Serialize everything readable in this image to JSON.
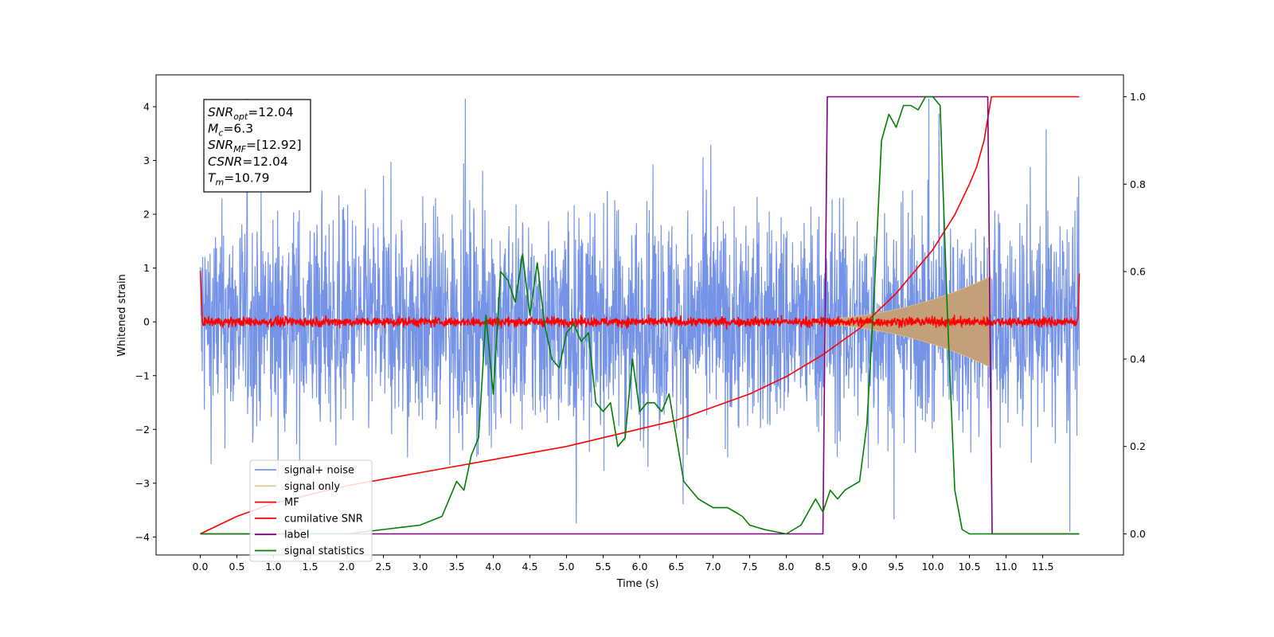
{
  "chart_data": {
    "type": "line",
    "xlabel": "Time (s)",
    "ylabel": "Whitened strain",
    "xlim": [
      -0.6,
      12.6
    ],
    "ylim": [
      -4.4,
      4.57
    ],
    "y2lim": [
      -0.05,
      1.05
    ],
    "grid": false,
    "legend_position": "lower-left",
    "x_ticks": [
      "0.0",
      "0.5",
      "1.0",
      "1.5",
      "2.0",
      "2.5",
      "3.0",
      "3.5",
      "4.0",
      "4.5",
      "5.0",
      "5.5",
      "6.0",
      "6.5",
      "7.0",
      "7.5",
      "8.0",
      "8.5",
      "9.0",
      "9.5",
      "10.0",
      "10.5",
      "11.0",
      "11.5"
    ],
    "y_ticks": [
      "4",
      "3",
      "2",
      "1",
      "0",
      "−1",
      "−2",
      "−3",
      "−4"
    ],
    "y2_ticks": [
      "1.0",
      "0.8",
      "0.6",
      "0.4",
      "0.2",
      "0.0"
    ],
    "info_box": {
      "lines": [
        {
          "symbol": "SNR",
          "sub": "opt",
          "value": "=12.04"
        },
        {
          "symbol": "M",
          "sub": "c",
          "value": "=6.3"
        },
        {
          "symbol": "SNR",
          "sub": "MF",
          "value": "=[12.92]"
        },
        {
          "symbol": "CSNR",
          "sub": "",
          "value": "=12.04"
        },
        {
          "symbol": "T",
          "sub": "m",
          "value": "=10.79"
        }
      ]
    },
    "series": [
      {
        "name": "signal+ noise",
        "color": "#7593e6",
        "axis": "left",
        "kind": "noise",
        "x_range": [
          0.0,
          12.0
        ],
        "approx_range": [
          -3.9,
          4.15
        ]
      },
      {
        "name": "signal only",
        "color": "#e8c07a",
        "axis": "left",
        "kind": "chirp",
        "x_range": [
          7.5,
          10.79
        ],
        "peak_amplitude": 0.85
      },
      {
        "name": "MF",
        "color": "#ff0000",
        "axis": "left",
        "kind": "small-noise",
        "x_range": [
          0.0,
          12.0
        ],
        "approx_amplitude": 0.1
      },
      {
        "name": "cumilative SNR",
        "color": "#ff0000",
        "axis": "right",
        "x": [
          0.0,
          0.5,
          1.0,
          2.0,
          3.0,
          4.0,
          5.0,
          6.0,
          6.5,
          7.0,
          7.5,
          8.0,
          8.5,
          9.0,
          9.5,
          10.0,
          10.3,
          10.5,
          10.6,
          10.7,
          10.79,
          10.8,
          12.0
        ],
        "values": [
          0.0,
          0.04,
          0.07,
          0.11,
          0.14,
          0.17,
          0.2,
          0.24,
          0.26,
          0.29,
          0.32,
          0.36,
          0.41,
          0.47,
          0.55,
          0.65,
          0.73,
          0.8,
          0.84,
          0.9,
          0.99,
          1.0,
          1.0
        ]
      },
      {
        "name": "label",
        "color": "#800080",
        "axis": "right",
        "x": [
          0.0,
          8.5,
          8.56,
          10.75,
          10.81,
          12.0
        ],
        "values": [
          0.0,
          0.0,
          1.0,
          1.0,
          0.0,
          0.0
        ]
      },
      {
        "name": "signal statistics",
        "color": "#008000",
        "axis": "right",
        "x": [
          0.0,
          0.5,
          1.0,
          1.5,
          2.0,
          2.5,
          3.0,
          3.3,
          3.5,
          3.6,
          3.7,
          3.8,
          3.9,
          4.0,
          4.1,
          4.2,
          4.3,
          4.4,
          4.5,
          4.6,
          4.7,
          4.8,
          4.9,
          5.0,
          5.1,
          5.2,
          5.3,
          5.4,
          5.5,
          5.6,
          5.7,
          5.8,
          5.9,
          6.0,
          6.1,
          6.2,
          6.3,
          6.4,
          6.5,
          6.6,
          6.8,
          7.0,
          7.2,
          7.3,
          7.4,
          7.5,
          7.7,
          8.0,
          8.2,
          8.4,
          8.5,
          8.6,
          8.7,
          8.8,
          9.0,
          9.1,
          9.2,
          9.3,
          9.4,
          9.5,
          9.6,
          9.7,
          9.8,
          9.9,
          10.0,
          10.1,
          10.2,
          10.3,
          10.4,
          10.5,
          10.6,
          11.0,
          12.0
        ],
        "values": [
          0.0,
          0.0,
          0.0,
          0.0,
          0.0,
          0.01,
          0.02,
          0.04,
          0.12,
          0.1,
          0.18,
          0.22,
          0.5,
          0.32,
          0.6,
          0.58,
          0.53,
          0.64,
          0.5,
          0.62,
          0.48,
          0.4,
          0.38,
          0.46,
          0.48,
          0.44,
          0.46,
          0.3,
          0.28,
          0.3,
          0.2,
          0.22,
          0.4,
          0.28,
          0.3,
          0.3,
          0.28,
          0.32,
          0.22,
          0.12,
          0.08,
          0.06,
          0.06,
          0.05,
          0.04,
          0.02,
          0.01,
          0.0,
          0.02,
          0.08,
          0.05,
          0.1,
          0.08,
          0.1,
          0.12,
          0.25,
          0.55,
          0.9,
          0.96,
          0.93,
          0.98,
          0.98,
          0.97,
          1.0,
          1.0,
          0.98,
          0.5,
          0.1,
          0.01,
          0.0,
          0.0,
          0.0,
          0.0
        ]
      }
    ]
  }
}
